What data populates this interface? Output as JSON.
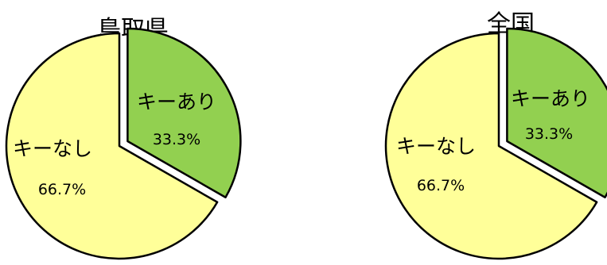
{
  "chart_data": [
    {
      "type": "pie",
      "title": "鳥取県",
      "slices": [
        {
          "label": "キーあり",
          "value": 33.3,
          "value_label": "33.3%",
          "color": "#92d050",
          "exploded": true
        },
        {
          "label": "キーなし",
          "value": 66.7,
          "value_label": "66.7%",
          "color": "#ffff99",
          "exploded": false
        }
      ]
    },
    {
      "type": "pie",
      "title": "全国",
      "slices": [
        {
          "label": "キーあり",
          "value": 33.3,
          "value_label": "33.3%",
          "color": "#92d050",
          "exploded": true
        },
        {
          "label": "キーなし",
          "value": 66.7,
          "value_label": "66.7%",
          "color": "#ffff99",
          "exploded": false
        }
      ]
    }
  ]
}
